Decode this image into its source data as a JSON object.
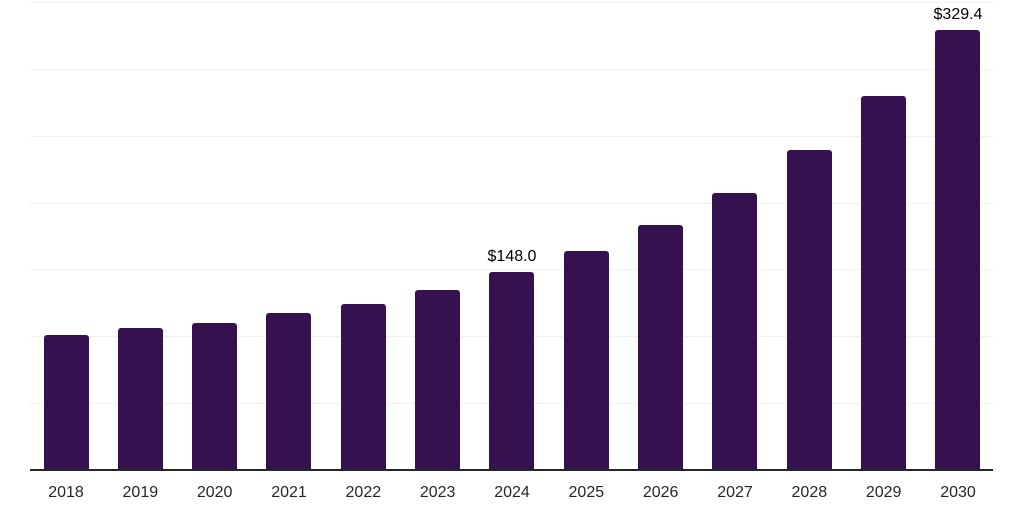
{
  "chart": {
    "background_color": "#ffffff",
    "bar_color": "#361150",
    "grid_color": "#f1f1f1",
    "axis_line_color": "#262626",
    "tick_label_color": "#262626",
    "value_label_color": "#000000"
  },
  "chart_data": {
    "type": "bar",
    "title": "",
    "xlabel": "",
    "ylabel": "",
    "categories": [
      "2018",
      "2019",
      "2020",
      "2021",
      "2022",
      "2023",
      "2024",
      "2025",
      "2026",
      "2027",
      "2028",
      "2029",
      "2030"
    ],
    "values": [
      100.7,
      105.9,
      110.3,
      117.1,
      124.5,
      134.6,
      148.0,
      164.0,
      183.4,
      207.3,
      239.3,
      279.6,
      329.4
    ],
    "data_labels": [
      "",
      "",
      "",
      "",
      "",
      "",
      "$148.0",
      "",
      "",
      "",
      "",
      "",
      "$329.4"
    ],
    "ylim": [
      0,
      350
    ],
    "grid_step": 50,
    "grid": "horizontal",
    "y_axis_tick_labels_visible": false,
    "legend": "none"
  }
}
